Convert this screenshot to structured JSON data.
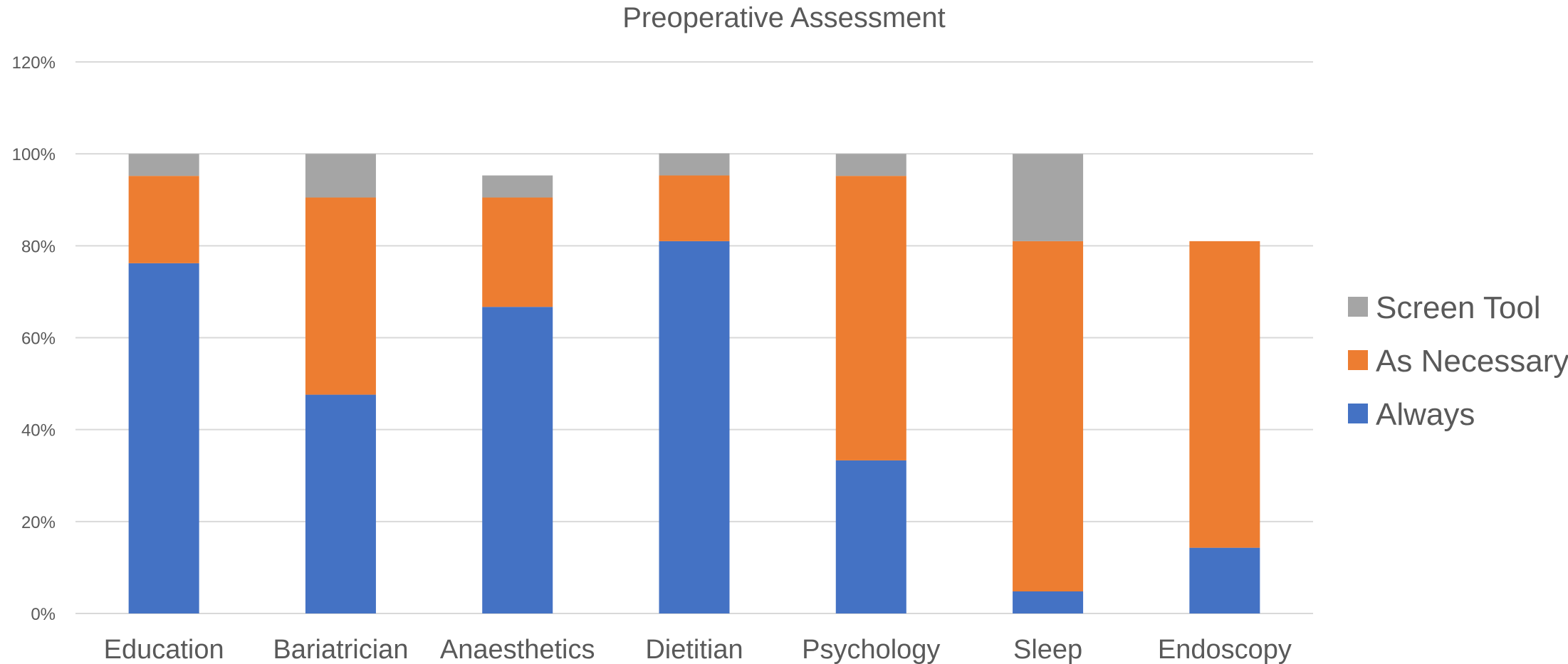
{
  "chart_data": {
    "type": "bar",
    "stacked": true,
    "title": "Preoperative Assessment",
    "xlabel": "",
    "ylabel": "",
    "ylim": [
      0,
      120
    ],
    "y_tick_step": 20,
    "y_tick_labels": [
      "0%",
      "20%",
      "40%",
      "60%",
      "80%",
      "100%",
      "120%"
    ],
    "grid": true,
    "legend_position": "right",
    "categories": [
      "Education",
      "Bariatrician",
      "Anaesthetics",
      "Dietitian",
      "Psychology",
      "Sleep",
      "Endoscopy"
    ],
    "series": [
      {
        "name": "Always",
        "color": "#4472C4",
        "values": [
          76.2,
          47.6,
          66.7,
          81.0,
          33.3,
          4.8,
          14.3
        ]
      },
      {
        "name": "As Necessary",
        "color": "#ED7D31",
        "values": [
          19.0,
          42.9,
          23.8,
          14.3,
          61.9,
          76.2,
          66.7
        ]
      },
      {
        "name": "Screen Tool",
        "color": "#A5A5A5",
        "values": [
          4.8,
          9.5,
          4.8,
          4.8,
          4.8,
          19.0,
          0
        ]
      }
    ],
    "legend_order": [
      "Screen Tool",
      "As Necessary",
      "Always"
    ]
  }
}
